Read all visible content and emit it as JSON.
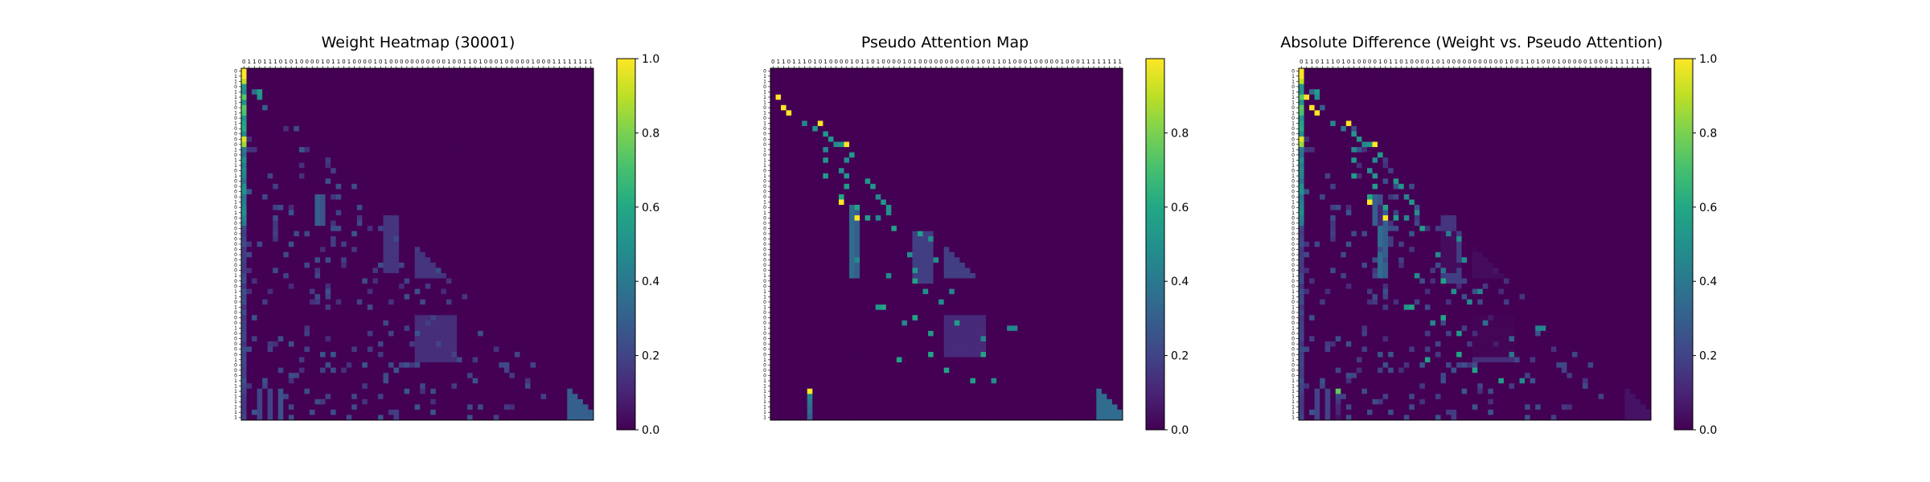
{
  "chart_data": [
    {
      "type": "heatmap",
      "title": "Weight Heatmap (30001)",
      "colormap": "viridis",
      "colorbar": {
        "ticks": [
          "0.0",
          "0.2",
          "0.4",
          "0.6",
          "0.8",
          "1.0"
        ],
        "vmin": 0,
        "vmax": 1
      },
      "x_tick_labels": "0110111010100001011010000101000000000001001101000100000100011111111",
      "y_tick_labels": "0110111010100001011010000101000000000001001101000100000100011111111",
      "style": "weight"
    },
    {
      "type": "heatmap",
      "title": "Pseudo Attention Map",
      "colormap": "viridis",
      "colorbar": {
        "ticks": [
          "0.0",
          "0.2",
          "0.4",
          "0.6",
          "0.8"
        ],
        "vmin": 0,
        "vmax": 1
      },
      "x_tick_labels": "0110111010100001011010000101000000000001001101000100000100011111111",
      "y_tick_labels": "0110111010100001011010000101000000000001001101000100000100011111111",
      "style": "pseudo"
    },
    {
      "type": "heatmap",
      "title": "Absolute Difference (Weight vs. Pseudo Attention)",
      "colormap": "viridis",
      "colorbar": {
        "ticks": [
          "0.0",
          "0.2",
          "0.4",
          "0.6",
          "0.8",
          "1.0"
        ],
        "vmin": 0,
        "vmax": 1
      },
      "x_tick_labels": "0110111010100001011010000101000000000001001101000100000100011111111",
      "y_tick_labels": "0110111010100001011010000101000000000001001101000100000100011111111",
      "style": "diff"
    }
  ]
}
